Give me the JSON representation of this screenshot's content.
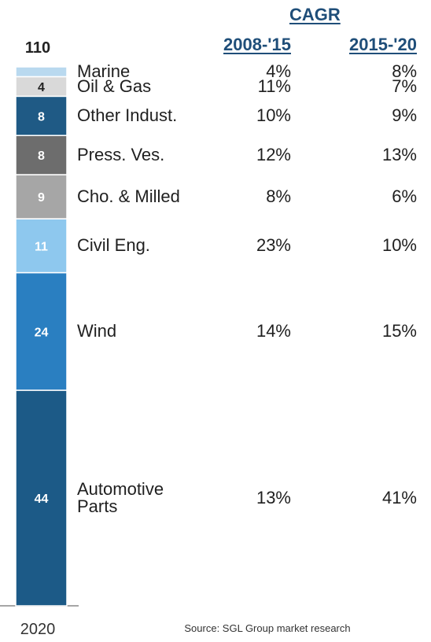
{
  "chart_data": {
    "type": "bar",
    "stacked": true,
    "x_category": "2020",
    "total": 110,
    "categories": [
      "Marine",
      "Oil & Gas",
      "Other Indust.",
      "Press. Ves.",
      "Cho. & Milled",
      "Civil Eng.",
      "Wind",
      "Automotive\nParts"
    ],
    "values": [
      2,
      4,
      8,
      8,
      9,
      11,
      24,
      44
    ],
    "colors": [
      "#b9d9ef",
      "#d9d9d9",
      "#1f5a85",
      "#6d6d6d",
      "#a6a6a6",
      "#8ec8ee",
      "#2a7fc1",
      "#1c5a87"
    ],
    "source": "Source: SGL Group market research"
  },
  "table": {
    "title": "CAGR",
    "columns": [
      "2008-'15",
      "2015-'20"
    ],
    "rows": [
      [
        "4%",
        "8%"
      ],
      [
        "11%",
        "7%"
      ],
      [
        "10%",
        "9%"
      ],
      [
        "12%",
        "13%"
      ],
      [
        "8%",
        "6%"
      ],
      [
        "23%",
        "10%"
      ],
      [
        "14%",
        "15%"
      ],
      [
        "13%",
        "41%"
      ]
    ]
  }
}
